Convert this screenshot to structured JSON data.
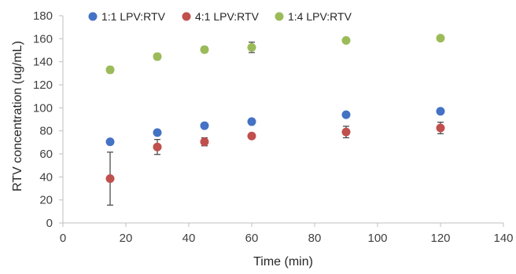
{
  "chart_data": {
    "type": "scatter",
    "title": "",
    "xlabel": "Time (min)",
    "ylabel": "RTV concentration (ug/mL)",
    "xlim": [
      0,
      140
    ],
    "ylim": [
      0,
      180
    ],
    "xticks": [
      0,
      20,
      40,
      60,
      80,
      100,
      120,
      140
    ],
    "yticks": [
      0,
      20,
      40,
      60,
      80,
      100,
      120,
      140,
      160,
      180
    ],
    "grid": false,
    "legend_position": "top-left",
    "series": [
      {
        "name": "1:1 LPV:RTV",
        "color": "#4472C4",
        "points": [
          {
            "x": 15,
            "y": 70.5,
            "err": 1
          },
          {
            "x": 30,
            "y": 78.5,
            "err": 1
          },
          {
            "x": 45,
            "y": 84.5,
            "err": 1
          },
          {
            "x": 60,
            "y": 88,
            "err": 1
          },
          {
            "x": 90,
            "y": 94,
            "err": 1
          },
          {
            "x": 120,
            "y": 97,
            "err": 1
          }
        ]
      },
      {
        "name": "4:1 LPV:RTV",
        "color": "#C0504D",
        "points": [
          {
            "x": 15,
            "y": 38.5,
            "err": 23
          },
          {
            "x": 30,
            "y": 66,
            "err": 6.5
          },
          {
            "x": 45,
            "y": 70.5,
            "err": 3.5
          },
          {
            "x": 60,
            "y": 75.5,
            "err": 1.5
          },
          {
            "x": 90,
            "y": 79,
            "err": 5
          },
          {
            "x": 120,
            "y": 82.5,
            "err": 5
          }
        ]
      },
      {
        "name": "1:4 LPV:RTV",
        "color": "#9BBB59",
        "points": [
          {
            "x": 15,
            "y": 133,
            "err": 2.5
          },
          {
            "x": 30,
            "y": 144.5,
            "err": 2.5
          },
          {
            "x": 45,
            "y": 150.5,
            "err": 2.5
          },
          {
            "x": 60,
            "y": 152.5,
            "err": 4.5
          },
          {
            "x": 90,
            "y": 158.5,
            "err": 2
          },
          {
            "x": 120,
            "y": 160.5,
            "err": 1
          }
        ]
      }
    ]
  }
}
